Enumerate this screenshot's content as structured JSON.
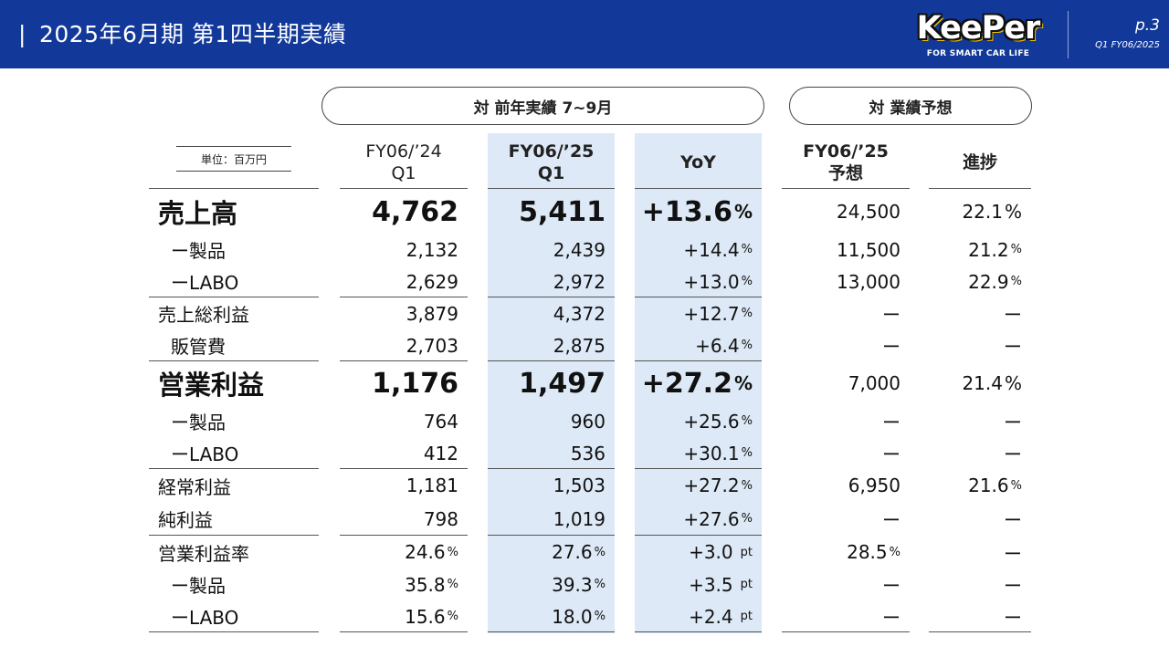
{
  "header": {
    "bar": "|",
    "title": "2025年6月期 第1四半期実績",
    "logo_text": "KeePer",
    "logo_tagline": "FOR SMART CAR LIFE",
    "page": "p.3",
    "page_sub": "Q1 FY06/2025"
  },
  "sections": {
    "prior_year": "対 前年実績 7~9月",
    "forecast": "対 業績予想"
  },
  "unit_label": "単位：百万円",
  "columns": {
    "prev": [
      "FY06/’24",
      "Q1"
    ],
    "cur": [
      "FY06/’25",
      "Q1"
    ],
    "yoy": "YoY",
    "forecast": [
      "FY06/’25",
      "予想"
    ],
    "progress": "進捗"
  },
  "rows": [
    {
      "label": "売上高",
      "prev": "4,762",
      "cur": "5,411",
      "yoy": "+13.6",
      "yoy_unit": "%",
      "fc": "24,500",
      "prog": "22.1",
      "prog_unit": "%"
    },
    {
      "label": "ー製品",
      "prev": "2,132",
      "cur": "2,439",
      "yoy": "+14.4",
      "yoy_unit": "%",
      "fc": "11,500",
      "prog": "21.2",
      "prog_unit": "%"
    },
    {
      "label": "ーLABO",
      "prev": "2,629",
      "cur": "2,972",
      "yoy": "+13.0",
      "yoy_unit": "%",
      "fc": "13,000",
      "prog": "22.9",
      "prog_unit": "%"
    },
    {
      "label": "売上総利益",
      "prev": "3,879",
      "cur": "4,372",
      "yoy": "+12.7",
      "yoy_unit": "%",
      "fc": "ー",
      "prog": "ー"
    },
    {
      "label": "販管費",
      "prev": "2,703",
      "cur": "2,875",
      "yoy": "+6.4",
      "yoy_unit": "%",
      "fc": "ー",
      "prog": "ー"
    },
    {
      "label": "営業利益",
      "prev": "1,176",
      "cur": "1,497",
      "yoy": "+27.2",
      "yoy_unit": "%",
      "fc": "7,000",
      "prog": "21.4",
      "prog_unit": "%"
    },
    {
      "label": "ー製品",
      "prev": "764",
      "cur": "960",
      "yoy": "+25.6",
      "yoy_unit": "%",
      "fc": "ー",
      "prog": "ー"
    },
    {
      "label": "ーLABO",
      "prev": "412",
      "cur": "536",
      "yoy": "+30.1",
      "yoy_unit": "%",
      "fc": "ー",
      "prog": "ー"
    },
    {
      "label": "経常利益",
      "prev": "1,181",
      "cur": "1,503",
      "yoy": "+27.2",
      "yoy_unit": "%",
      "fc": "6,950",
      "prog": "21.6",
      "prog_unit": "%"
    },
    {
      "label": "純利益",
      "prev": "798",
      "cur": "1,019",
      "yoy": "+27.6",
      "yoy_unit": "%",
      "fc": "ー",
      "prog": "ー"
    },
    {
      "label": "営業利益率",
      "prev": "24.6",
      "prev_unit": "%",
      "cur": "27.6",
      "cur_unit": "%",
      "yoy": "+3.0",
      "yoy_unit": "pt",
      "fc": "28.5",
      "fc_unit": "%",
      "prog": "ー"
    },
    {
      "label": "ー製品",
      "prev": "35.8",
      "prev_unit": "%",
      "cur": "39.3",
      "cur_unit": "%",
      "yoy": "+3.5",
      "yoy_unit": "pt",
      "fc": "ー",
      "prog": "ー"
    },
    {
      "label": "ーLABO",
      "prev": "15.6",
      "prev_unit": "%",
      "cur": "18.0",
      "cur_unit": "%",
      "yoy": "+2.4",
      "yoy_unit": "pt",
      "fc": "ー",
      "prog": "ー"
    }
  ]
}
